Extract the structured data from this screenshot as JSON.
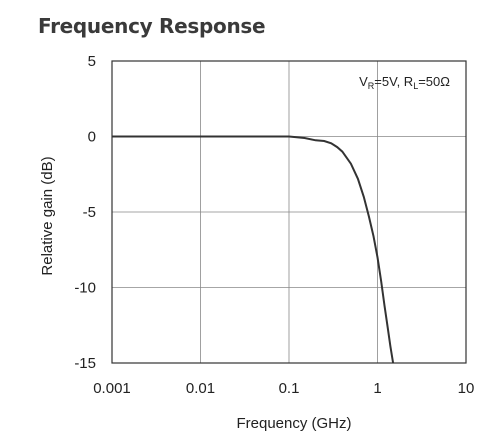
{
  "chart_data": {
    "type": "line",
    "title": "Frequency Response",
    "xlabel": "Frequency  (GHz)",
    "ylabel": "Relative  gain  (dB)",
    "xscale": "log",
    "xlim": [
      0.001,
      10
    ],
    "ylim": [
      -15,
      5
    ],
    "xticks": [
      0.001,
      0.01,
      0.1,
      1,
      10
    ],
    "xtick_labels": [
      "0.001",
      "0.01",
      "0.1",
      "1",
      "10"
    ],
    "yticks": [
      5,
      0,
      -5,
      -10,
      -15
    ],
    "ytick_labels": [
      "5",
      "0",
      "-5",
      "-10",
      "-15"
    ],
    "grid": true,
    "annotation": {
      "segments": [
        {
          "text": "V",
          "sub": false
        },
        {
          "text": "R",
          "sub": true
        },
        {
          "text": "=5V, R",
          "sub": false
        },
        {
          "text": "L",
          "sub": true
        },
        {
          "text": "=50Ω",
          "sub": false
        }
      ]
    },
    "series": [
      {
        "color": "#333333",
        "x": [
          0.001,
          0.01,
          0.1,
          0.15,
          0.2,
          0.25,
          0.3,
          0.35,
          0.4,
          0.5,
          0.6,
          0.7,
          0.8,
          0.9,
          1.0,
          1.1,
          1.2,
          1.3,
          1.4,
          1.5
        ],
        "y": [
          0,
          0,
          0,
          -0.1,
          -0.25,
          -0.3,
          -0.45,
          -0.7,
          -1.0,
          -1.8,
          -2.8,
          -4.0,
          -5.3,
          -6.6,
          -8.0,
          -9.6,
          -11.2,
          -12.6,
          -13.9,
          -15.0
        ]
      }
    ]
  }
}
